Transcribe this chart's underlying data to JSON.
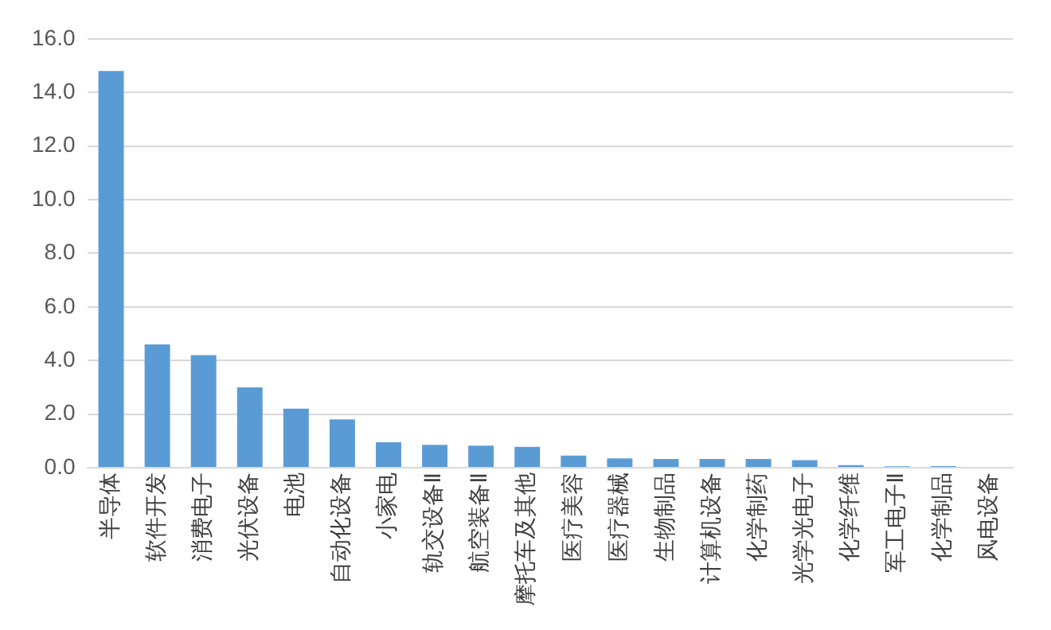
{
  "chart_data": {
    "type": "bar",
    "categories": [
      "半导体",
      "软件开发",
      "消费电子",
      "光伏设备",
      "电池",
      "自动化设备",
      "小家电",
      "轨交设备Ⅱ",
      "航空装备Ⅱ",
      "摩托车及其他",
      "医疗美容",
      "医疗器械",
      "生物制品",
      "计算机设备",
      "化学制药",
      "光学光电子",
      "化学纤维",
      "军工电子Ⅱ",
      "化学制品",
      "风电设备"
    ],
    "values": [
      14.8,
      4.6,
      4.2,
      3.0,
      2.2,
      1.8,
      0.95,
      0.85,
      0.82,
      0.78,
      0.45,
      0.35,
      0.33,
      0.33,
      0.33,
      0.28,
      0.1,
      0.05,
      0.06,
      0
    ],
    "color": "#5b9bd5",
    "ylim": [
      0,
      16
    ],
    "yticks": [
      {
        "value": 0,
        "label": "0.0"
      },
      {
        "value": 2,
        "label": "2.0"
      },
      {
        "value": 4,
        "label": "4.0"
      },
      {
        "value": 6,
        "label": "6.0"
      },
      {
        "value": 8,
        "label": "8.0"
      },
      {
        "value": 10,
        "label": "10.0"
      },
      {
        "value": 12,
        "label": "12.0"
      },
      {
        "value": 14,
        "label": "14.0"
      },
      {
        "value": 16,
        "label": "16.0"
      }
    ],
    "grid": "y",
    "legend": false
  }
}
